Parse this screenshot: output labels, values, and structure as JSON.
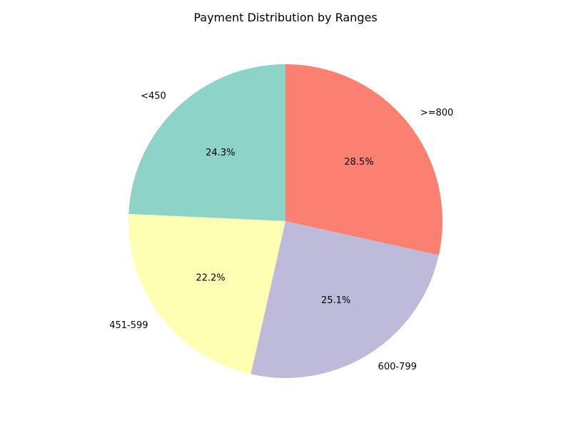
{
  "chart_data": {
    "type": "pie",
    "title": "Payment Distribution by Ranges",
    "categories": [
      "<450",
      "451-599",
      "600-799",
      ">=800"
    ],
    "values": [
      24.3,
      22.2,
      25.1,
      28.5
    ],
    "value_labels": [
      "24.3%",
      "22.2%",
      "25.1%",
      "28.5%"
    ],
    "colors": [
      "#8dd3c7",
      "#ffffb3",
      "#bebada",
      "#fb8072"
    ],
    "start_angle_deg": 90,
    "direction": "counterclockwise",
    "legend": false
  }
}
